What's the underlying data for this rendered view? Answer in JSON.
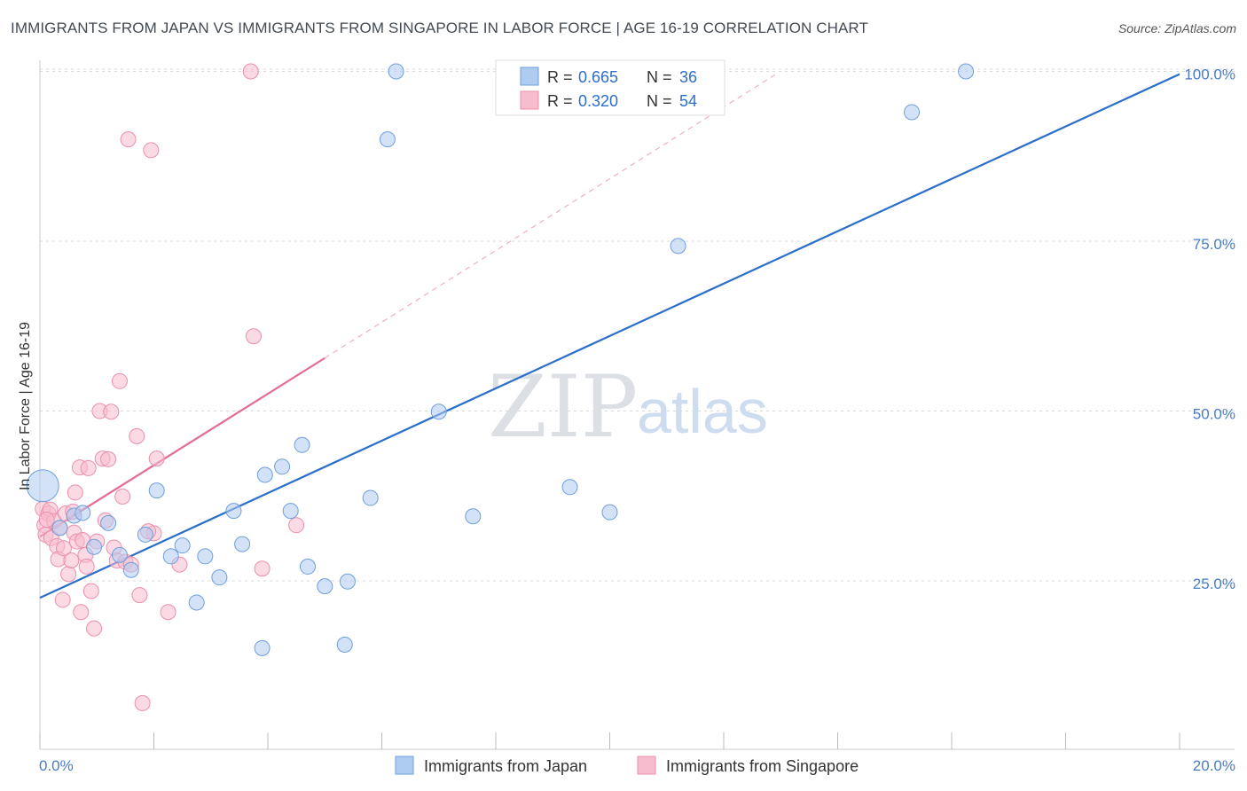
{
  "title": "IMMIGRANTS FROM JAPAN VS IMMIGRANTS FROM SINGAPORE IN LABOR FORCE | AGE 16-19 CORRELATION CHART",
  "source": "Source: ZipAtlas.com",
  "watermark": {
    "zip": "ZIP",
    "atlas": "atlas"
  },
  "colors": {
    "japan_fill": "#aecbf0",
    "japan_stroke": "#6f9fdd",
    "japan_line": "#2a6fcb",
    "singapore_fill": "#f7bccd",
    "singapore_stroke": "#ec8fab",
    "singapore_line": "#e56b92",
    "grid": "#d8d8d8",
    "tick_label": "#4a7cc8"
  },
  "legend": {
    "rows": [
      {
        "r_label": "R =",
        "r_value": "0.665",
        "n_label": "N =",
        "n_value": "36"
      },
      {
        "r_label": "R =",
        "r_value": "0.320",
        "n_label": "N =",
        "n_value": "54"
      }
    ]
  },
  "chart_data": {
    "type": "scatter",
    "title": "IMMIGRANTS FROM JAPAN VS IMMIGRANTS FROM SINGAPORE IN LABOR FORCE | AGE 16-19 CORRELATION CHART",
    "xlabel": "",
    "ylabel": "In Labor Force | Age 16-19",
    "xlim": [
      0,
      20
    ],
    "ylim": [
      0,
      105
    ],
    "x_tick_labels": [
      "0.0%",
      "20.0%"
    ],
    "y_ticks": [
      25,
      50,
      75,
      100
    ],
    "y_tick_labels": [
      "25.0%",
      "50.0%",
      "75.0%",
      "100.0%"
    ],
    "grid": true,
    "legend_position": "top-center",
    "series": [
      {
        "name": "Immigrants from Japan",
        "R": 0.665,
        "N": 36,
        "trend": {
          "x": [
            0,
            20
          ],
          "y": [
            22.5,
            99.6
          ],
          "style": "solid"
        },
        "points": [
          {
            "x": 0.05,
            "y": 39.0,
            "r": 18
          },
          {
            "x": 0.35,
            "y": 32.8
          },
          {
            "x": 0.6,
            "y": 34.6
          },
          {
            "x": 0.75,
            "y": 35.0
          },
          {
            "x": 0.95,
            "y": 30.0
          },
          {
            "x": 1.2,
            "y": 33.5
          },
          {
            "x": 1.4,
            "y": 28.8
          },
          {
            "x": 1.6,
            "y": 26.6
          },
          {
            "x": 1.85,
            "y": 31.8
          },
          {
            "x": 2.05,
            "y": 38.3
          },
          {
            "x": 2.3,
            "y": 28.6
          },
          {
            "x": 2.5,
            "y": 30.2
          },
          {
            "x": 2.75,
            "y": 21.8
          },
          {
            "x": 2.9,
            "y": 28.6
          },
          {
            "x": 3.15,
            "y": 25.5
          },
          {
            "x": 3.4,
            "y": 35.3
          },
          {
            "x": 3.55,
            "y": 30.4
          },
          {
            "x": 3.9,
            "y": 15.1
          },
          {
            "x": 3.95,
            "y": 40.6
          },
          {
            "x": 4.25,
            "y": 41.8
          },
          {
            "x": 4.4,
            "y": 35.3
          },
          {
            "x": 4.6,
            "y": 45.0
          },
          {
            "x": 4.7,
            "y": 27.1
          },
          {
            "x": 5.0,
            "y": 24.2
          },
          {
            "x": 5.35,
            "y": 15.6
          },
          {
            "x": 5.4,
            "y": 24.9
          },
          {
            "x": 5.8,
            "y": 37.2
          },
          {
            "x": 6.1,
            "y": 90.0
          },
          {
            "x": 6.25,
            "y": 100.0
          },
          {
            "x": 7.0,
            "y": 49.9
          },
          {
            "x": 7.6,
            "y": 34.5
          },
          {
            "x": 9.3,
            "y": 38.8
          },
          {
            "x": 10.0,
            "y": 35.1
          },
          {
            "x": 11.2,
            "y": 74.3
          },
          {
            "x": 15.3,
            "y": 94.0
          },
          {
            "x": 16.25,
            "y": 100.0
          }
        ]
      },
      {
        "name": "Immigrants from Singapore",
        "R": 0.32,
        "N": 54,
        "trend": {
          "x": [
            0,
            5.0
          ],
          "y": [
            31.5,
            57.8
          ],
          "style": "solid",
          "extension": {
            "x": [
              5.0,
              12.9
            ],
            "y": [
              57.8,
              99.5
            ],
            "style": "dashed"
          }
        },
        "points": [
          {
            "x": 0.05,
            "y": 35.6
          },
          {
            "x": 0.08,
            "y": 33.2
          },
          {
            "x": 0.1,
            "y": 31.8
          },
          {
            "x": 0.15,
            "y": 34.9
          },
          {
            "x": 0.18,
            "y": 35.5
          },
          {
            "x": 0.2,
            "y": 31.3
          },
          {
            "x": 0.25,
            "y": 33.8
          },
          {
            "x": 0.3,
            "y": 30.1
          },
          {
            "x": 0.32,
            "y": 28.2
          },
          {
            "x": 0.35,
            "y": 32.8
          },
          {
            "x": 0.4,
            "y": 22.2
          },
          {
            "x": 0.42,
            "y": 29.8
          },
          {
            "x": 0.45,
            "y": 34.9
          },
          {
            "x": 0.5,
            "y": 26.0
          },
          {
            "x": 0.55,
            "y": 28.0
          },
          {
            "x": 0.58,
            "y": 35.2
          },
          {
            "x": 0.6,
            "y": 32.1
          },
          {
            "x": 0.62,
            "y": 38.0
          },
          {
            "x": 0.65,
            "y": 30.8
          },
          {
            "x": 0.7,
            "y": 41.7
          },
          {
            "x": 0.72,
            "y": 20.4
          },
          {
            "x": 0.75,
            "y": 31.0
          },
          {
            "x": 0.8,
            "y": 28.8
          },
          {
            "x": 0.82,
            "y": 27.1
          },
          {
            "x": 0.85,
            "y": 41.6
          },
          {
            "x": 0.9,
            "y": 23.5
          },
          {
            "x": 0.95,
            "y": 18.0
          },
          {
            "x": 1.0,
            "y": 30.8
          },
          {
            "x": 1.05,
            "y": 50.0
          },
          {
            "x": 1.1,
            "y": 43.0
          },
          {
            "x": 1.15,
            "y": 33.9
          },
          {
            "x": 1.2,
            "y": 42.9
          },
          {
            "x": 1.25,
            "y": 49.9
          },
          {
            "x": 1.3,
            "y": 29.9
          },
          {
            "x": 1.35,
            "y": 28.0
          },
          {
            "x": 1.4,
            "y": 54.4
          },
          {
            "x": 1.45,
            "y": 37.4
          },
          {
            "x": 1.5,
            "y": 27.8
          },
          {
            "x": 1.55,
            "y": 90.0
          },
          {
            "x": 1.6,
            "y": 27.4
          },
          {
            "x": 1.7,
            "y": 46.3
          },
          {
            "x": 1.75,
            "y": 22.9
          },
          {
            "x": 1.8,
            "y": 7.0
          },
          {
            "x": 1.95,
            "y": 88.4
          },
          {
            "x": 2.0,
            "y": 32.0
          },
          {
            "x": 1.9,
            "y": 32.3
          },
          {
            "x": 2.05,
            "y": 43.0
          },
          {
            "x": 2.25,
            "y": 20.4
          },
          {
            "x": 2.45,
            "y": 27.4
          },
          {
            "x": 3.7,
            "y": 100.0
          },
          {
            "x": 3.75,
            "y": 61.0
          },
          {
            "x": 3.9,
            "y": 26.8
          },
          {
            "x": 4.5,
            "y": 33.2
          },
          {
            "x": 0.12,
            "y": 34.0
          }
        ]
      }
    ]
  },
  "bottom_legend": {
    "items": [
      {
        "label": "Immigrants from Japan"
      },
      {
        "label": "Immigrants from Singapore"
      }
    ]
  }
}
